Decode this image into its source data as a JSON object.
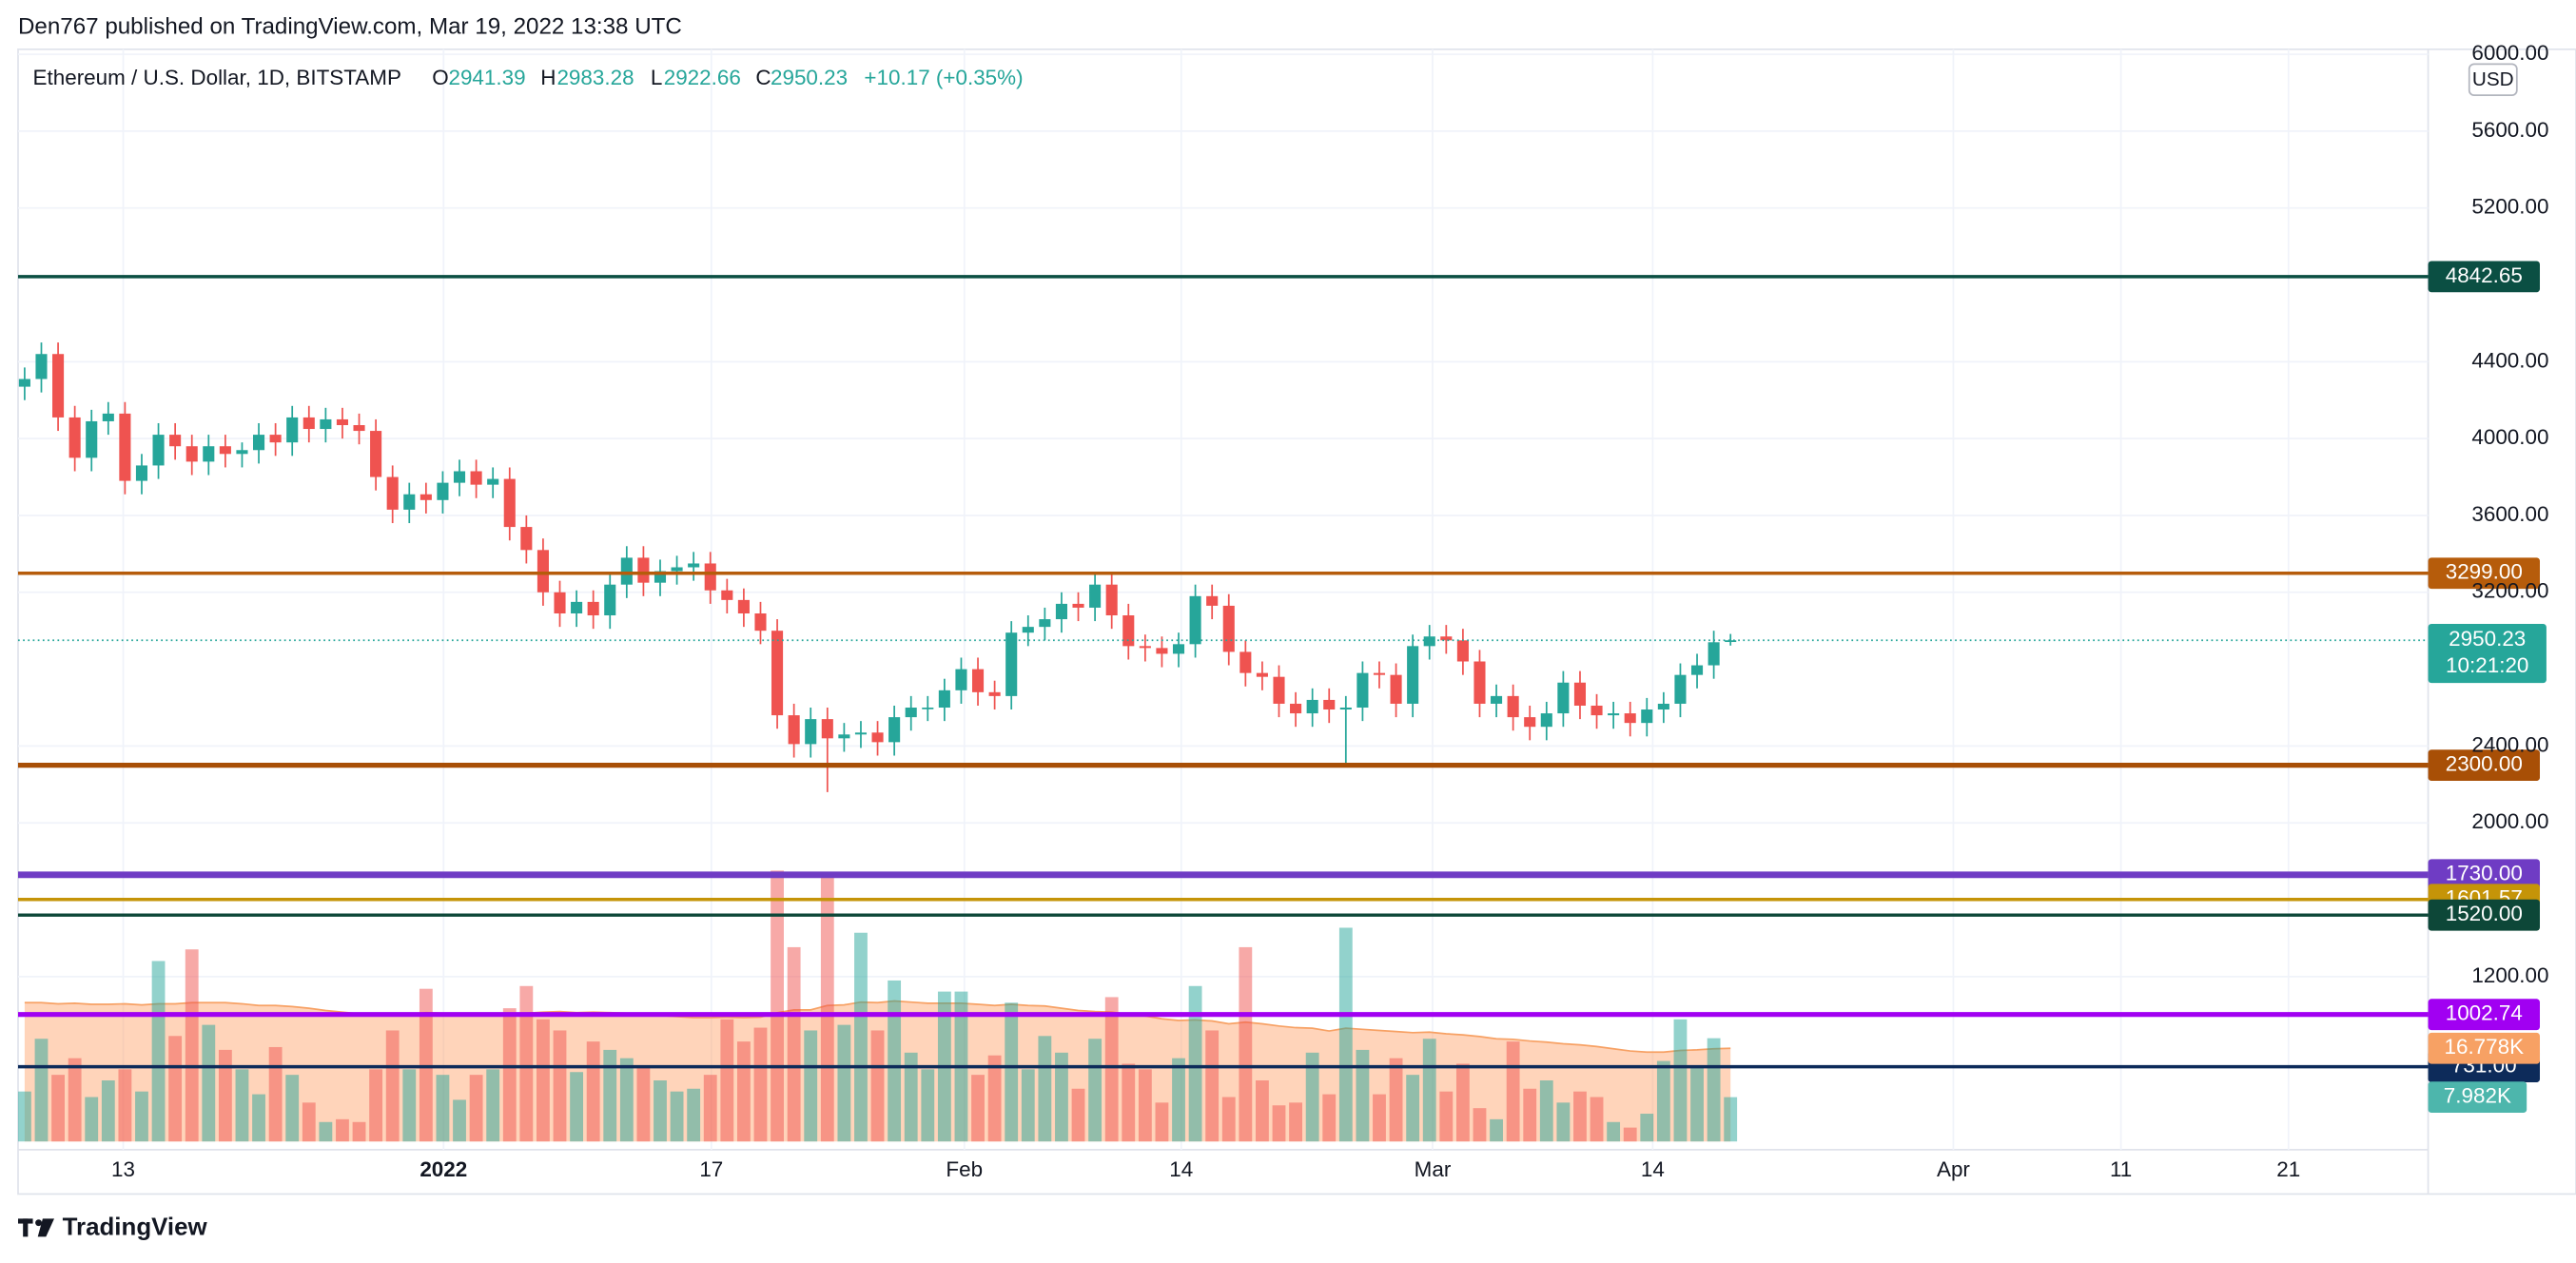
{
  "header": {
    "publisher": "Den767 published on TradingView.com, Mar 19, 2022 13:38 UTC"
  },
  "chart_data": {
    "type": "candlestick",
    "title": "Ethereum / U.S. Dollar, 1D, BITSTAMP",
    "legend_letters": [
      "O",
      "H",
      "L",
      "C"
    ],
    "change": "+10.17 (+0.35%)",
    "currency": "USD",
    "countdown": "10:21:20",
    "up_color": "#26a69a",
    "down_color": "#ef5350",
    "grid": true,
    "ylim": [
      342,
      6026
    ],
    "yticks": [
      {
        "value": 6000,
        "label": "6000.00"
      },
      {
        "value": 5600,
        "label": "5600.00"
      },
      {
        "value": 5200,
        "label": "5200.00"
      },
      {
        "value": 4400,
        "label": "4400.00"
      },
      {
        "value": 4000,
        "label": "4000.00"
      },
      {
        "value": 3600,
        "label": "3600.00"
      },
      {
        "value": 3200,
        "label": "3200.00"
      },
      {
        "value": 2400,
        "label": "2400.00"
      },
      {
        "value": 2000,
        "label": "2000.00"
      },
      {
        "value": 1200,
        "label": "1200.00"
      }
    ],
    "xticks": [
      "13",
      "2022",
      "17",
      "Feb",
      "14",
      "Mar",
      "14",
      "Apr",
      "11",
      "21"
    ],
    "candles": {
      "open": [
        4270,
        4310,
        4440,
        4110,
        3900,
        4090,
        4130,
        3780,
        3860,
        4020,
        3960,
        3880,
        3960,
        3920,
        3940,
        4020,
        3980,
        4110,
        4050,
        4100,
        4070,
        4040,
        3800,
        3630,
        3710,
        3680,
        3770,
        3830,
        3760,
        3790,
        3540,
        3420,
        3200,
        3090,
        3150,
        3080,
        3240,
        3380,
        3250,
        3310,
        3330,
        3350,
        3210,
        3160,
        3090,
        3000,
        2560,
        2410,
        2540,
        2440,
        2460,
        2470,
        2420,
        2550,
        2600,
        2600,
        2690,
        2800,
        2680,
        2660,
        2990,
        3020,
        3060,
        3140,
        3120,
        3240,
        3080,
        2920,
        2910,
        2880,
        2930,
        3180,
        3130,
        2890,
        2780,
        2760,
        2620,
        2570,
        2640,
        2590,
        2600,
        2780,
        2770,
        2620,
        2920,
        2970,
        2950,
        2840,
        2620,
        2660,
        2550,
        2500,
        2570,
        2730,
        2610,
        2560,
        2570,
        2520,
        2590,
        2620,
        2770,
        2820,
        2941.39
      ],
      "high": [
        4370,
        4500,
        4500,
        4170,
        4150,
        4190,
        4190,
        3920,
        4080,
        4080,
        4020,
        4020,
        4020,
        3980,
        4080,
        4080,
        4170,
        4170,
        4160,
        4160,
        4130,
        4100,
        3860,
        3770,
        3770,
        3830,
        3890,
        3890,
        3850,
        3850,
        3600,
        3480,
        3260,
        3210,
        3210,
        3300,
        3440,
        3440,
        3370,
        3390,
        3410,
        3410,
        3270,
        3220,
        3150,
        3060,
        2620,
        2600,
        2600,
        2520,
        2530,
        2530,
        2610,
        2660,
        2660,
        2750,
        2860,
        2860,
        2740,
        3050,
        3080,
        3120,
        3200,
        3200,
        3300,
        3300,
        3140,
        2980,
        2970,
        2990,
        3240,
        3240,
        3190,
        2950,
        2840,
        2820,
        2680,
        2700,
        2700,
        2660,
        2840,
        2840,
        2830,
        2980,
        3030,
        3030,
        3010,
        2900,
        2720,
        2720,
        2610,
        2630,
        2790,
        2790,
        2670,
        2630,
        2630,
        2650,
        2680,
        2830,
        2880,
        3000,
        2983.28
      ],
      "low": [
        4200,
        4240,
        4040,
        3830,
        3830,
        4020,
        3710,
        3710,
        3790,
        3890,
        3810,
        3810,
        3850,
        3850,
        3870,
        3910,
        3910,
        3980,
        3980,
        4000,
        3970,
        3730,
        3560,
        3560,
        3610,
        3610,
        3700,
        3690,
        3690,
        3470,
        3350,
        3130,
        3020,
        3020,
        3010,
        3010,
        3170,
        3180,
        3180,
        3240,
        3260,
        3140,
        3090,
        3020,
        2930,
        2490,
        2340,
        2340,
        2160,
        2370,
        2390,
        2350,
        2350,
        2480,
        2530,
        2530,
        2620,
        2610,
        2590,
        2590,
        2920,
        2950,
        2990,
        3050,
        3050,
        3010,
        2850,
        2840,
        2810,
        2810,
        2860,
        3060,
        2820,
        2710,
        2690,
        2550,
        2500,
        2500,
        2520,
        2300,
        2530,
        2700,
        2550,
        2550,
        2850,
        2880,
        2770,
        2550,
        2550,
        2480,
        2430,
        2430,
        2500,
        2540,
        2490,
        2490,
        2450,
        2450,
        2520,
        2550,
        2700,
        2750,
        2922.66
      ],
      "close": [
        4310,
        4440,
        4110,
        3900,
        4090,
        4130,
        3780,
        3860,
        4020,
        3960,
        3880,
        3960,
        3920,
        3940,
        4020,
        3980,
        4110,
        4050,
        4100,
        4070,
        4040,
        3800,
        3630,
        3710,
        3680,
        3770,
        3830,
        3760,
        3790,
        3540,
        3420,
        3200,
        3090,
        3150,
        3080,
        3240,
        3380,
        3250,
        3310,
        3330,
        3350,
        3210,
        3160,
        3090,
        3000,
        2560,
        2410,
        2540,
        2440,
        2460,
        2470,
        2420,
        2550,
        2600,
        2600,
        2690,
        2800,
        2680,
        2660,
        2990,
        3020,
        3060,
        3140,
        3120,
        3240,
        3080,
        2920,
        2910,
        2880,
        2930,
        3180,
        3130,
        2890,
        2780,
        2760,
        2620,
        2570,
        2640,
        2590,
        2600,
        2780,
        2770,
        2620,
        2920,
        2970,
        2950,
        2840,
        2620,
        2660,
        2550,
        2500,
        2570,
        2730,
        2610,
        2560,
        2570,
        2520,
        2590,
        2620,
        2770,
        2820,
        2940,
        2950.23
      ]
    },
    "volume": [
      9000,
      18500,
      12000,
      15000,
      8000,
      11000,
      13000,
      9000,
      32500,
      19000,
      34600,
      21000,
      16500,
      13000,
      8500,
      17000,
      12000,
      7000,
      3500,
      4000,
      3500,
      13000,
      20000,
      13000,
      27500,
      12000,
      7500,
      12000,
      13000,
      24000,
      28000,
      22000,
      20000,
      12500,
      18000,
      16500,
      15000,
      13500,
      11000,
      9000,
      9500,
      12000,
      22000,
      18000,
      20500,
      48800,
      35000,
      20000,
      48000,
      21000,
      37600,
      20000,
      29000,
      16000,
      13000,
      27000,
      27000,
      12000,
      15500,
      25000,
      13000,
      19000,
      16000,
      9500,
      18500,
      26000,
      14000,
      13000,
      7000,
      15000,
      28000,
      20000,
      8000,
      35000,
      11000,
      6500,
      7000,
      16000,
      8500,
      38500,
      16500,
      8500,
      15000,
      12000,
      18500,
      9000,
      14000,
      6000,
      4000,
      18000,
      9500,
      11000,
      7000,
      9000,
      8000,
      3500,
      2500,
      5000,
      14500,
      22000,
      13500,
      18600,
      7982
    ],
    "volume_label": "7.982K",
    "volume_ma": [
      25000,
      25000,
      24800,
      24900,
      24700,
      24700,
      24800,
      24600,
      24800,
      24800,
      25000,
      25000,
      25000,
      24800,
      24500,
      24500,
      24300,
      24000,
      23600,
      23300,
      23000,
      22800,
      23000,
      22900,
      23200,
      23100,
      22900,
      22800,
      22700,
      22900,
      23100,
      23300,
      23400,
      23200,
      23300,
      23200,
      23100,
      22900,
      22700,
      22500,
      22300,
      22300,
      22400,
      22300,
      22400,
      23200,
      23700,
      23700,
      24500,
      24600,
      25100,
      25000,
      25300,
      25100,
      24900,
      24900,
      24900,
      24700,
      24500,
      24700,
      24500,
      24400,
      24000,
      23600,
      23400,
      23300,
      22900,
      22600,
      22100,
      21800,
      21900,
      21700,
      21200,
      21500,
      21200,
      20800,
      20500,
      20400,
      19900,
      20400,
      20200,
      20000,
      19800,
      19600,
      19700,
      19400,
      19200,
      18900,
      18500,
      18400,
      18100,
      17900,
      17600,
      17400,
      17100,
      16700,
      16300,
      16100,
      16100,
      16400,
      16500,
      16700,
      16778
    ],
    "volume_ma_label": "16.778K",
    "levels": [
      {
        "value": 4842.65,
        "color": "#0b4f43"
      },
      {
        "value": 3299,
        "label": "3299.00",
        "color": "#b65c0b"
      },
      {
        "value": 2300,
        "label": "2300.00",
        "color": "#a84f06"
      },
      {
        "value": 1730,
        "label": "1730.00",
        "color": "#6f3cc4"
      },
      {
        "value": 1601.57,
        "color": "#c59408"
      },
      {
        "value": 1520,
        "label": "1520.00",
        "color": "#0d4738"
      },
      {
        "value": 1002.74,
        "color": "#a100f2"
      },
      {
        "value": 731,
        "label": "731.00",
        "color": "#0d2b5a"
      }
    ]
  },
  "footer": {
    "brand": "TradingView"
  }
}
